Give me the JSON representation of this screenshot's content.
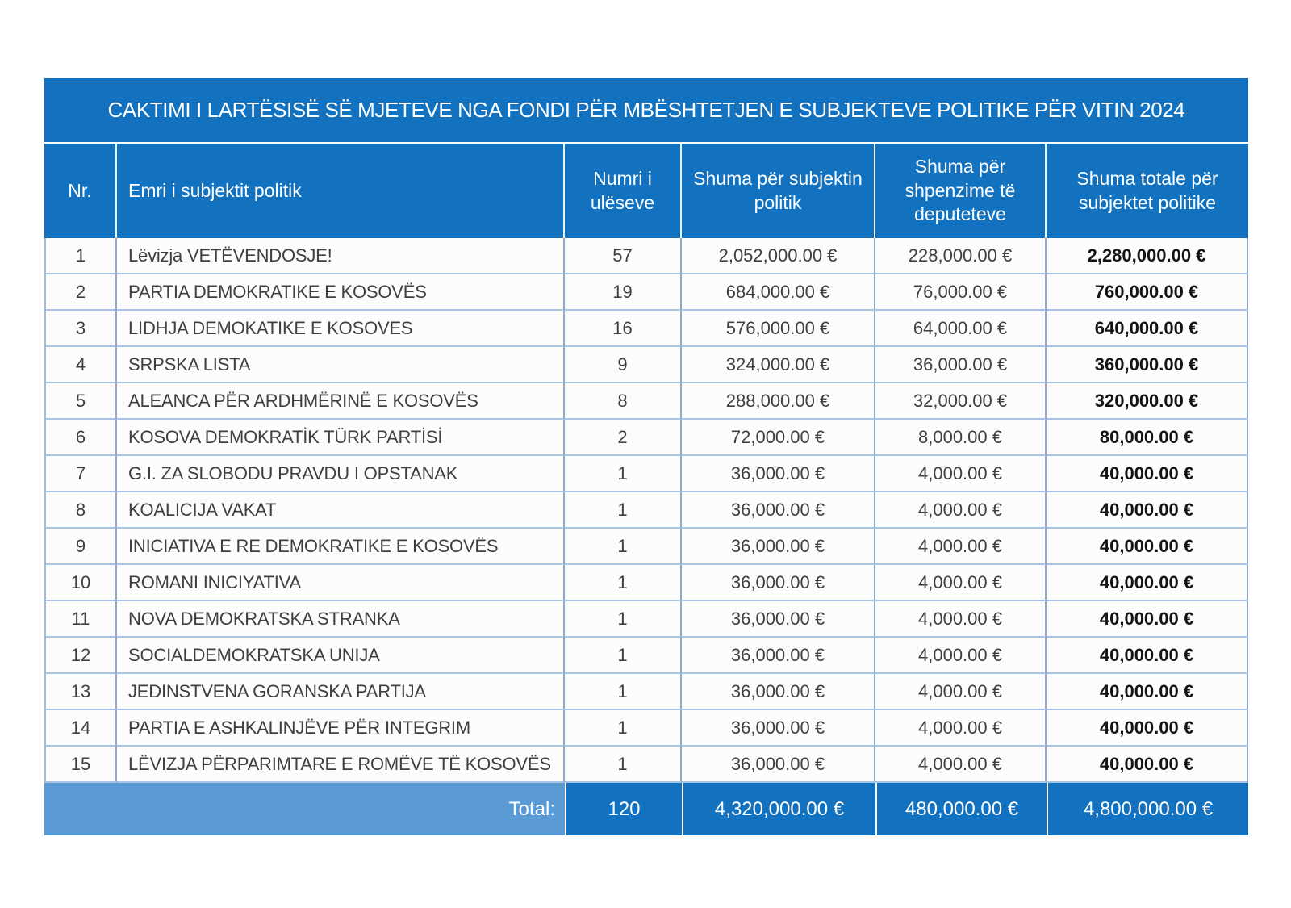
{
  "title": "CAKTIMI I LARTËSISË SË MJETEVE NGA FONDI PËR MBËSHTETJEN E SUBJEKTEVE POLITIKE PËR VITIN 2024",
  "columns": [
    "Nr.",
    "Emri i subjektit politik",
    "Numri i ulëseve",
    "Shuma për subjektin politik",
    "Shuma për shpenzime të deputeteve",
    "Shuma totale për subjektet politike"
  ],
  "rows": [
    {
      "nr": "1",
      "name": "Lëvizja VETËVENDOSJE!",
      "seats": "57",
      "amount_subject": "2,052,000.00 €",
      "amount_mps": "228,000.00 €",
      "amount_total": "2,280,000.00 €"
    },
    {
      "nr": "2",
      "name": "PARTIA DEMOKRATIKE E KOSOVËS",
      "seats": "19",
      "amount_subject": "684,000.00 €",
      "amount_mps": "76,000.00 €",
      "amount_total": "760,000.00 €"
    },
    {
      "nr": "3",
      "name": "LIDHJA DEMOKATIKE E KOSOVES",
      "seats": "16",
      "amount_subject": "576,000.00 €",
      "amount_mps": "64,000.00 €",
      "amount_total": "640,000.00 €"
    },
    {
      "nr": "4",
      "name": "SRPSKA LISTA",
      "seats": "9",
      "amount_subject": "324,000.00 €",
      "amount_mps": "36,000.00 €",
      "amount_total": "360,000.00 €"
    },
    {
      "nr": "5",
      "name": "ALEANCA PËR ARDHMËRINË E KOSOVËS",
      "seats": "8",
      "amount_subject": "288,000.00 €",
      "amount_mps": "32,000.00 €",
      "amount_total": "320,000.00 €"
    },
    {
      "nr": "6",
      "name": "KOSOVA DEMOKRATİK TÜRK PARTİSİ",
      "seats": "2",
      "amount_subject": "72,000.00 €",
      "amount_mps": "8,000.00 €",
      "amount_total": "80,000.00 €"
    },
    {
      "nr": "7",
      "name": "G.I. ZA SLOBODU PRAVDU I OPSTANAK",
      "seats": "1",
      "amount_subject": "36,000.00 €",
      "amount_mps": "4,000.00 €",
      "amount_total": "40,000.00 €"
    },
    {
      "nr": "8",
      "name": "KOALICIJA VAKAT",
      "seats": "1",
      "amount_subject": "36,000.00 €",
      "amount_mps": "4,000.00 €",
      "amount_total": "40,000.00 €"
    },
    {
      "nr": "9",
      "name": "INICIATIVA E RE DEMOKRATIKE E KOSOVËS",
      "seats": "1",
      "amount_subject": "36,000.00 €",
      "amount_mps": "4,000.00 €",
      "amount_total": "40,000.00 €"
    },
    {
      "nr": "10",
      "name": "ROMANI INICIYATIVA",
      "seats": "1",
      "amount_subject": "36,000.00 €",
      "amount_mps": "4,000.00 €",
      "amount_total": "40,000.00 €"
    },
    {
      "nr": "11",
      "name": "NOVA DEMOKRATSKA STRANKA",
      "seats": "1",
      "amount_subject": "36,000.00 €",
      "amount_mps": "4,000.00 €",
      "amount_total": "40,000.00 €"
    },
    {
      "nr": "12",
      "name": "SOCIALDEMOKRATSKA UNIJA",
      "seats": "1",
      "amount_subject": "36,000.00 €",
      "amount_mps": "4,000.00 €",
      "amount_total": "40,000.00 €"
    },
    {
      "nr": "13",
      "name": "JEDINSTVENA GORANSKA PARTIJA",
      "seats": "1",
      "amount_subject": "36,000.00 €",
      "amount_mps": "4,000.00 €",
      "amount_total": "40,000.00 €"
    },
    {
      "nr": "14",
      "name": "PARTIA E ASHKALINJËVE PËR INTEGRIM",
      "seats": "1",
      "amount_subject": "36,000.00 €",
      "amount_mps": "4,000.00 €",
      "amount_total": "40,000.00 €"
    },
    {
      "nr": "15",
      "name": "LËVIZJA PËRPARIMTARE E ROMËVE TË KOSOVËS",
      "seats": "1",
      "amount_subject": "36,000.00 €",
      "amount_mps": "4,000.00 €",
      "amount_total": "40,000.00 €"
    }
  ],
  "total_row": {
    "label": "Total:",
    "seats": "120",
    "amount_subject": "4,320,000.00 €",
    "amount_mps": "480,000.00 €",
    "amount_total": "4,800,000.00 €"
  },
  "colors": {
    "header_blue": "#1272BF",
    "total_light_blue": "#5B9BD5",
    "grid_vertical": "#8FA9C9",
    "grid_horizontal": "#A9C4E4",
    "text_dark": "#3F3F3F",
    "text_white": "#FFFFFF"
  }
}
